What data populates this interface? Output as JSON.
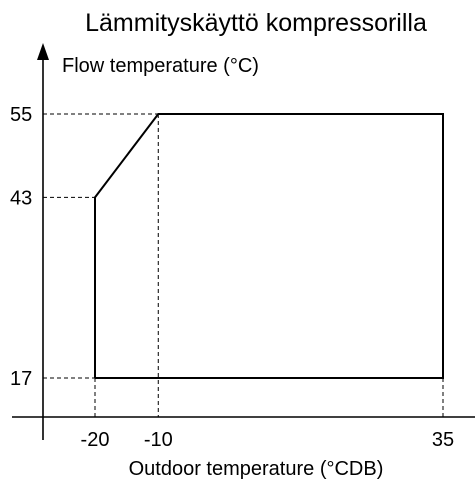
{
  "chart_data": {
    "type": "line",
    "title": "Lämmityskäyttö kompressorilla",
    "xlabel": "Outdoor temperature (°CDB)",
    "ylabel": "Flow temperature (°C)",
    "xlim": [
      -20,
      35
    ],
    "ylim": [
      17,
      55
    ],
    "x_ticks": [
      "-20",
      "-10",
      "35"
    ],
    "y_ticks": [
      "55",
      "43",
      "17"
    ],
    "grid": false,
    "series": [
      {
        "x": [
          -20,
          -20,
          -10,
          35,
          35,
          -20
        ],
        "y": [
          17,
          43,
          55,
          55,
          17,
          17
        ]
      }
    ],
    "guide_lines": [
      {
        "axis": "y",
        "value": 55,
        "to_x": -10
      },
      {
        "axis": "y",
        "value": 43,
        "to_x": -20
      },
      {
        "axis": "y",
        "value": 17,
        "to_x": -20
      },
      {
        "axis": "x",
        "value": -20,
        "from_y": 17
      },
      {
        "axis": "x",
        "value": -10,
        "from_y": 55
      },
      {
        "axis": "x",
        "value": 35,
        "from_y": 17
      }
    ]
  }
}
